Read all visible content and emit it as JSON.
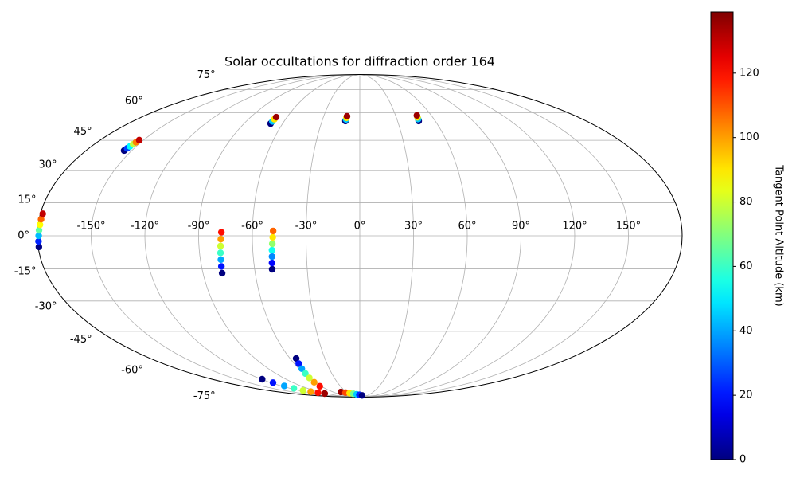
{
  "chart_data": {
    "type": "scatter",
    "projection": "mollweide",
    "title": "Solar occultations for diffraction order 164",
    "xlim": [
      -180,
      180
    ],
    "ylim": [
      -90,
      90
    ],
    "xticks": [
      {
        "value": -150,
        "label": "-150°"
      },
      {
        "value": -120,
        "label": "-120°"
      },
      {
        "value": -90,
        "label": "-90°"
      },
      {
        "value": -60,
        "label": "-60°"
      },
      {
        "value": -30,
        "label": "-30°"
      },
      {
        "value": 0,
        "label": "0°"
      },
      {
        "value": 30,
        "label": "30°"
      },
      {
        "value": 60,
        "label": "60°"
      },
      {
        "value": 90,
        "label": "90°"
      },
      {
        "value": 120,
        "label": "120°"
      },
      {
        "value": 150,
        "label": "150°"
      }
    ],
    "yticks": [
      {
        "value": -75,
        "label": "-75°"
      },
      {
        "value": -60,
        "label": "-60°"
      },
      {
        "value": -45,
        "label": "-45°"
      },
      {
        "value": -30,
        "label": "-30°"
      },
      {
        "value": -15,
        "label": "-15°"
      },
      {
        "value": 0,
        "label": "0°"
      },
      {
        "value": 15,
        "label": "15°"
      },
      {
        "value": 30,
        "label": "30°"
      },
      {
        "value": 45,
        "label": "45°"
      },
      {
        "value": 60,
        "label": "60°"
      },
      {
        "value": 75,
        "label": "75°"
      }
    ],
    "grid": true,
    "colormap": "jet",
    "colorbar_label": "Tangent Point Altitude (km)",
    "clim": [
      0,
      139
    ],
    "cticks": [
      0,
      20,
      40,
      60,
      80,
      100,
      120
    ],
    "lon": [
      -179.6,
      -179.5,
      -179.3,
      -179.2,
      -179,
      -178.9,
      -178.7,
      -155,
      -154.6,
      -154.2,
      -153.8,
      -153.4,
      -153,
      -69.3,
      -69.2,
      -69,
      -68.9,
      -11.4,
      -11.1,
      -10.9,
      -10.6,
      46.8,
      47.2,
      47.5,
      47.9,
      -79,
      -78.7,
      -78.4,
      -78.2,
      -77.9,
      -77.6,
      -77.3,
      -50,
      -49.7,
      -49.4,
      -49.2,
      -48.9,
      -48.6,
      -48.4,
      -54.7,
      -55.9,
      -57.1,
      -58.3,
      -59.5,
      -60.7,
      -61.9,
      -119,
      -117,
      -115,
      -113,
      -111.5,
      -106,
      -100,
      -93.6,
      -42,
      -33.9,
      -25.8,
      -17.7,
      -9.6,
      -1.5,
      8.6
    ],
    "lat": [
      -5,
      -2.5,
      0,
      2.5,
      5,
      7.5,
      10,
      39.8,
      40.9,
      41.9,
      43,
      44,
      45.1,
      53.9,
      55.1,
      56.3,
      57.5,
      55.3,
      56.2,
      57.1,
      58,
      55.3,
      56.4,
      57.4,
      58.5,
      -17,
      -13.9,
      -10.8,
      -7.7,
      -4.6,
      -1.5,
      1.6,
      -15.2,
      -12.3,
      -9.4,
      -6.5,
      -3.6,
      -0.7,
      2.2,
      -59.8,
      -62.9,
      -66,
      -69.1,
      -72.1,
      -75.2,
      -78.3,
      -73,
      -75.5,
      -78,
      -80,
      -81.9,
      -83,
      -84,
      -84.9,
      -83.3,
      -83.9,
      -84.5,
      -85.1,
      -85.7,
      -86.3,
      -87
    ],
    "alt": [
      0,
      22,
      43,
      65,
      87,
      108,
      130,
      0,
      26,
      52,
      78,
      104,
      130,
      0,
      45,
      90,
      135,
      0,
      45,
      90,
      135,
      0,
      45,
      90,
      135,
      0,
      20,
      40,
      60,
      80,
      100,
      120,
      0,
      18,
      36,
      54,
      72,
      90,
      108,
      0,
      20,
      40,
      60,
      80,
      100,
      120,
      0,
      20,
      40,
      60,
      80,
      100,
      120,
      135,
      135,
      112,
      90,
      68,
      45,
      22,
      0
    ]
  }
}
